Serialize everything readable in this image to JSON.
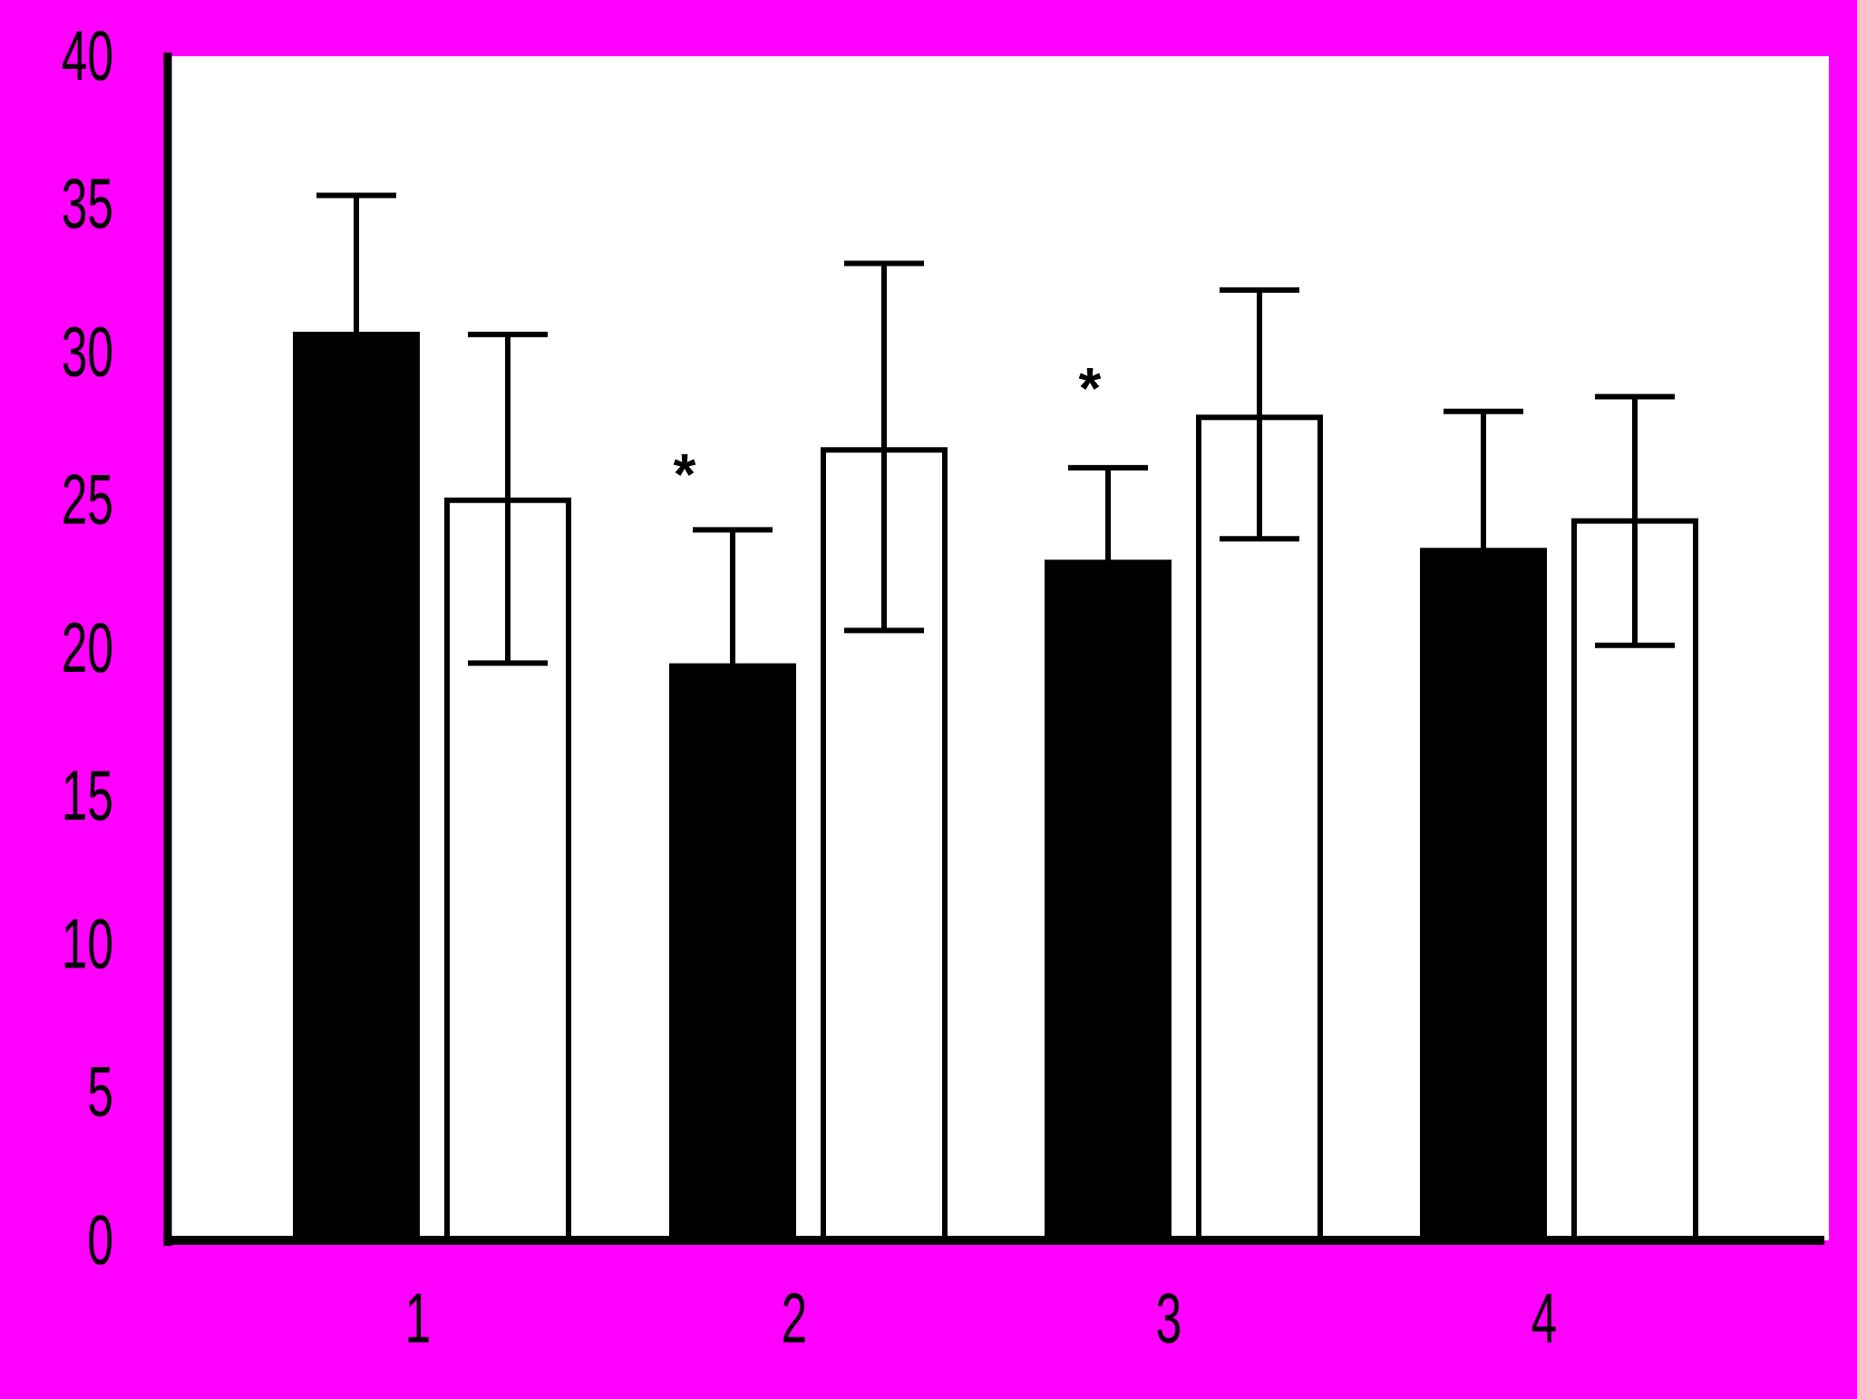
{
  "chart_data": {
    "type": "bar",
    "categories": [
      "1",
      "2",
      "3",
      "4"
    ],
    "ylim": [
      0,
      40
    ],
    "yticks": [
      "0",
      "5",
      "10",
      "15",
      "20",
      "25",
      "30",
      "35",
      "40"
    ],
    "series": [
      {
        "fill": "#000000",
        "values": [
          30.6,
          19.4,
          22.9,
          23.3
        ],
        "error_low": [
          30.6,
          19.4,
          22.9,
          23.3
        ],
        "error_high": [
          35.3,
          24.0,
          26.1,
          28.0
        ]
      },
      {
        "fill": "#ffffff",
        "values": [
          25.0,
          26.7,
          27.8,
          24.3
        ],
        "error_low": [
          19.5,
          20.6,
          23.7,
          20.1
        ],
        "error_high": [
          30.6,
          33.0,
          32.1,
          28.5
        ]
      }
    ],
    "annotations": [
      {
        "text": "*",
        "category_index": 1,
        "series_index": 0,
        "y": 26.5
      },
      {
        "text": "*",
        "category_index": 2,
        "series_index": 0,
        "y": 29.4
      }
    ],
    "colors": {
      "background": "#ff00ff",
      "plot_area": "#ffffff",
      "axis": "#000000"
    }
  }
}
